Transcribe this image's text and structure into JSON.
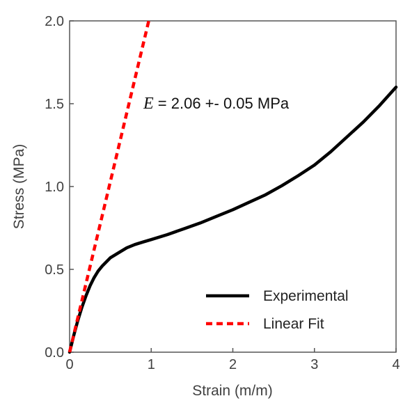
{
  "chart_data": {
    "type": "line",
    "xlabel": "Strain (m/m)",
    "ylabel": "Stress (MPa)",
    "xlim": [
      0,
      4
    ],
    "ylim": [
      0,
      2.0
    ],
    "x_ticks": [
      "0",
      "1",
      "2",
      "3",
      "4"
    ],
    "y_ticks": [
      "0.0",
      "0.5",
      "1.0",
      "1.5",
      "2.0"
    ],
    "grid": false,
    "legend_position": "bottom-right",
    "annotation": {
      "symbol": "E",
      "text": " = 2.06 +- 0.05 MPa"
    },
    "series": [
      {
        "name": "Experimental",
        "color": "#000000",
        "style": "solid",
        "x": [
          0,
          0.05,
          0.1,
          0.15,
          0.2,
          0.25,
          0.3,
          0.35,
          0.4,
          0.5,
          0.6,
          0.7,
          0.8,
          0.9,
          1.0,
          1.2,
          1.4,
          1.6,
          1.8,
          2.0,
          2.2,
          2.4,
          2.6,
          2.8,
          3.0,
          3.2,
          3.4,
          3.6,
          3.8,
          4.0
        ],
        "y": [
          0,
          0.1,
          0.19,
          0.27,
          0.34,
          0.4,
          0.45,
          0.49,
          0.52,
          0.57,
          0.6,
          0.63,
          0.65,
          0.665,
          0.68,
          0.71,
          0.745,
          0.78,
          0.82,
          0.86,
          0.905,
          0.95,
          1.005,
          1.065,
          1.13,
          1.21,
          1.3,
          1.39,
          1.49,
          1.6
        ]
      },
      {
        "name": "Linear Fit",
        "color": "#ff0000",
        "style": "dashed",
        "x": [
          0,
          0.97
        ],
        "y": [
          0,
          2.0
        ]
      }
    ]
  }
}
